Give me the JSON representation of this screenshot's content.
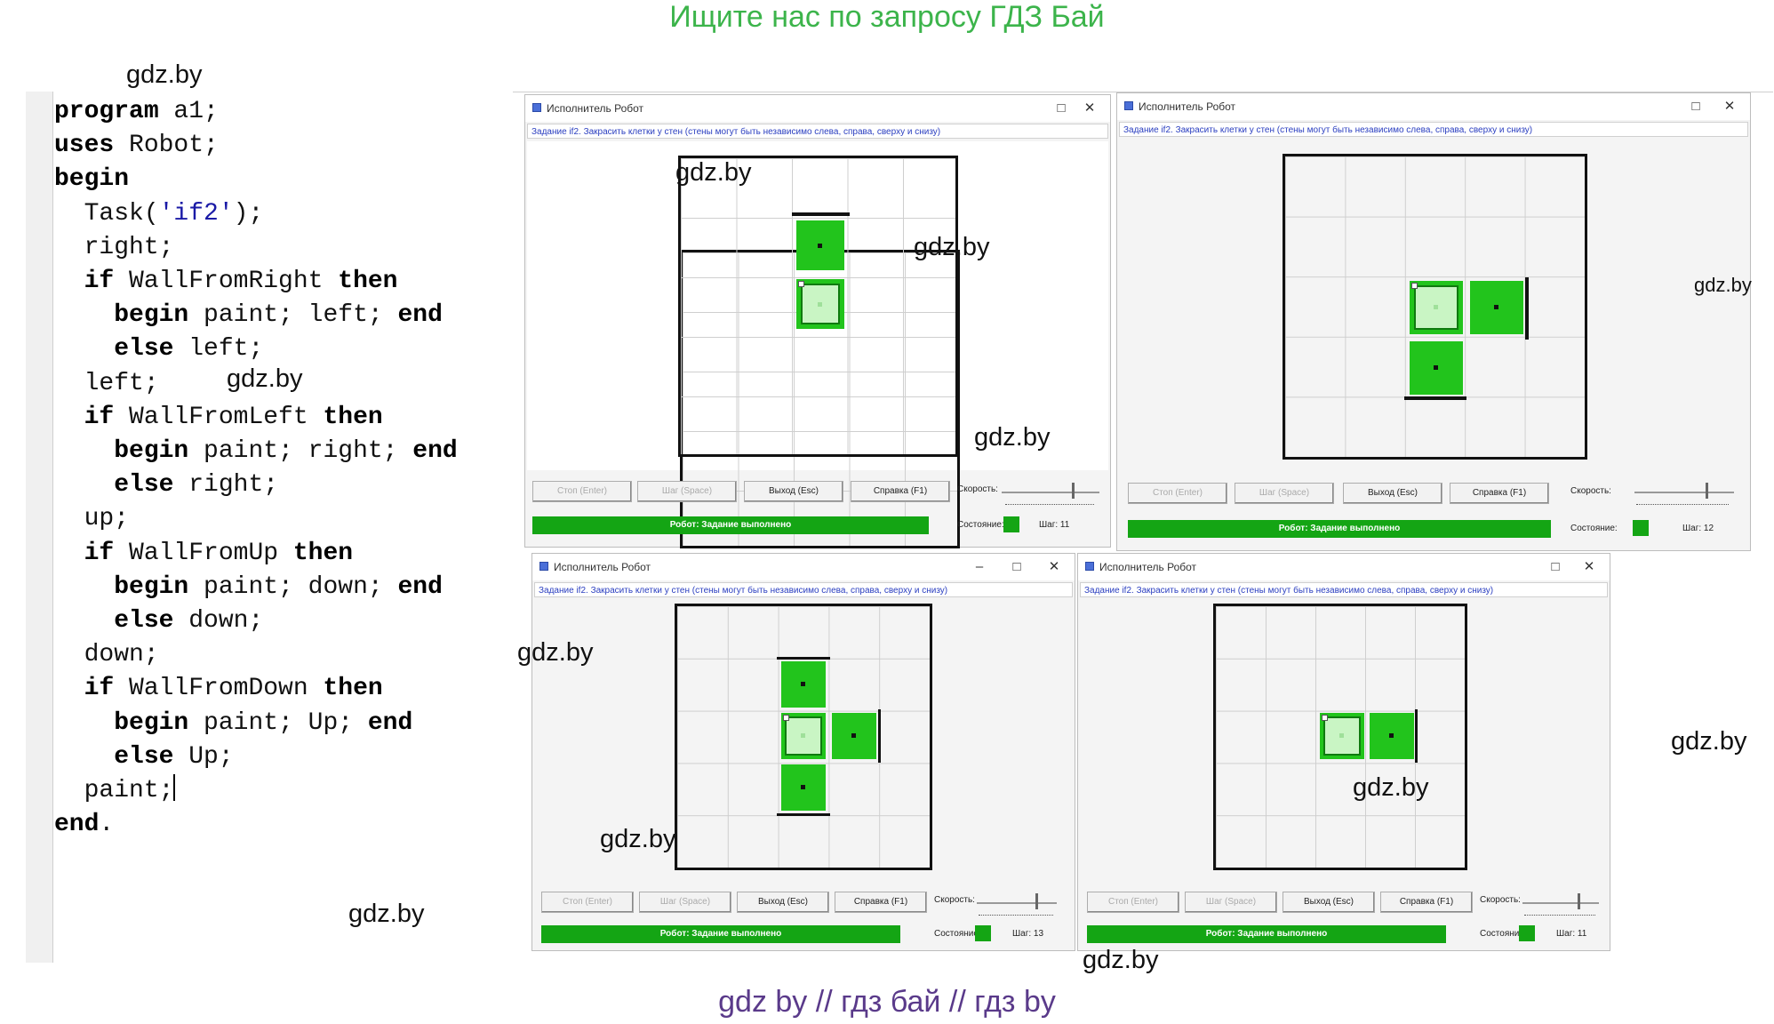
{
  "banner_top": "Ищите нас по запросу ГДЗ Бай",
  "banner_bottom": "gdz by  //  гдз бай  //  гдз by",
  "watermark": "gdz.by",
  "code": {
    "l1_kw": "program",
    "l1_rest": " a1;",
    "l2_kw": "uses",
    "l2_rest": " Robot;",
    "l3_kw": "begin",
    "l4_a": "  Task(",
    "l4_str": "'if2'",
    "l4_b": ");",
    "l5": "  right;",
    "l6_kw": "if",
    "l6_mid": " WallFromRight ",
    "l6_kw2": "then",
    "l7_kw": "begin",
    "l7_mid": " paint; left; ",
    "l7_kw2": "end",
    "l8_kw": "else",
    "l8_rest": " left;",
    "l9": "  left;",
    "l10_kw": "if",
    "l10_mid": " WallFromLeft ",
    "l10_kw2": "then",
    "l11_kw": "begin",
    "l11_mid": " paint; right; ",
    "l11_kw2": "end",
    "l12_kw": "else",
    "l12_rest": " right;",
    "l13": "  up;",
    "l14_kw": "if",
    "l14_mid": " WallFromUp ",
    "l14_kw2": "then",
    "l15_kw": "begin",
    "l15_mid": " paint; down; ",
    "l15_kw2": "end",
    "l16_kw": "else",
    "l16_rest": " down;",
    "l17": "  down;",
    "l18_kw": "if",
    "l18_mid": " WallFromDown ",
    "l18_kw2": "then",
    "l19_kw": "begin",
    "l19_mid": " paint; Up; ",
    "l19_kw2": "end",
    "l20_kw": "else",
    "l20_rest": " Up;",
    "l21": "  paint;",
    "l22_kw": "end",
    "l22_rest": "."
  },
  "robot_window": {
    "title": "Исполнитель Робот",
    "task": "Задание if2. Закрасить клетки у стен (стены могут быть независимо слева, справа, сверху и снизу)",
    "btn_stop": "Стоп (Enter)",
    "btn_step": "Шаг (Space)",
    "btn_exit": "Выход (Esc)",
    "btn_help": "Справка (F1)",
    "speed_label": "Скорость:",
    "state_label": "Состояние:",
    "status": "Робот: Задание выполнено",
    "minimize": "–",
    "maximize": "□",
    "close": "✕",
    "status_color": "#14a514",
    "paint_color": "#22c41c"
  },
  "windows": [
    {
      "steps": "Шаг: 11"
    },
    {
      "steps": "Шаг: 12"
    },
    {
      "steps": "Шаг: 13"
    },
    {
      "steps": "Шаг: 11"
    }
  ]
}
